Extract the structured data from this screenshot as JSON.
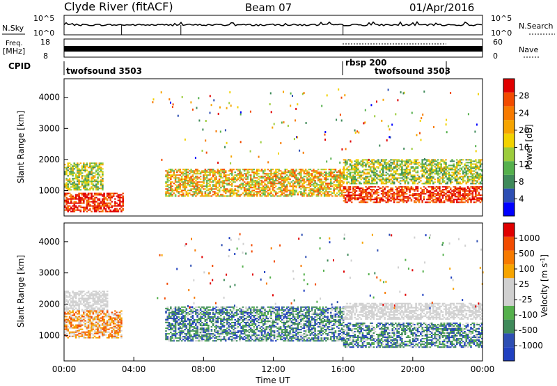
{
  "header": {
    "station": "Clyde River (fitACF)",
    "beam": "Beam 07",
    "date": "01/Apr/2016"
  },
  "noise_panel": {
    "left_label": "N.Sky",
    "right_label": "N.Search",
    "left_ticks": [
      "10^5",
      "10^0"
    ],
    "right_ticks": [
      "10^5",
      "10^0"
    ]
  },
  "freq_panel": {
    "label_line1": "Freq.",
    "label_line2": "[MHz]",
    "left_ticks": [
      "18",
      "8"
    ],
    "right_ticks": [
      "60",
      "0"
    ],
    "right_label": "Nave"
  },
  "cpid": {
    "label": "CPID",
    "segments": [
      {
        "name": "twofsound 3503",
        "start_hour": 0,
        "end_hour": 16
      },
      {
        "name": "rbsp 200",
        "start_hour": 16,
        "end_hour": 22
      },
      {
        "name": "twofsound 3503",
        "start_hour": 16.8,
        "end_hour": 22
      }
    ]
  },
  "time_axis": {
    "label": "Time UT",
    "ticks": [
      "00:00",
      "04:00",
      "08:00",
      "12:00",
      "16:00",
      "20:00",
      "00:00"
    ]
  },
  "colors": {
    "power": [
      "#0000ff",
      "#2d4eb3",
      "#3f8a5a",
      "#55b04c",
      "#9ccc3c",
      "#f2d200",
      "#f6a400",
      "#f77a00",
      "#f24b00",
      "#e00000"
    ],
    "velocity": [
      "#e00000",
      "#f24b00",
      "#f77a00",
      "#f6a400",
      "#d0d0d0",
      "#d0d0d0",
      "#55b04c",
      "#3f8a5a",
      "#2d4eb3",
      "#2040c0"
    ]
  },
  "chart_data": [
    {
      "type": "heatmap",
      "title": "",
      "xlabel": "Time UT",
      "ylabel": "Slant Range [km]",
      "xlim_hours": [
        0,
        24
      ],
      "ylim": [
        180,
        4600
      ],
      "y_ticks": [
        1000,
        2000,
        3000,
        4000
      ],
      "colorbar": {
        "label": "Power [dB]",
        "ticks": [
          "4",
          "8",
          "12",
          "16",
          "20",
          "24",
          "28"
        ],
        "range": [
          0,
          30
        ]
      },
      "features": [
        {
          "t0": 0.0,
          "t1": 2.2,
          "r0": 1000,
          "r1": 1900,
          "level": "mid"
        },
        {
          "t0": 0.0,
          "t1": 3.4,
          "r0": 300,
          "r1": 900,
          "level": "high"
        },
        {
          "t0": 5.8,
          "t1": 16.0,
          "r0": 800,
          "r1": 1700,
          "level": "mid-high"
        },
        {
          "t0": 16.0,
          "t1": 24.0,
          "r0": 600,
          "r1": 1100,
          "level": "high"
        },
        {
          "t0": 16.0,
          "t1": 24.0,
          "r0": 1200,
          "r1": 2000,
          "level": "mid"
        }
      ]
    },
    {
      "type": "heatmap",
      "title": "",
      "xlabel": "Time UT",
      "ylabel": "Slant Range [km]",
      "xlim_hours": [
        0,
        24
      ],
      "ylim": [
        180,
        4600
      ],
      "y_ticks": [
        1000,
        2000,
        3000,
        4000
      ],
      "colorbar": {
        "label": "Velocity [m s-1]",
        "ticks": [
          "1000",
          "500",
          "100",
          "25",
          "-25",
          "-100",
          "-500",
          "-1000"
        ],
        "range": [
          -1000,
          1000
        ]
      },
      "features": [
        {
          "t0": 0.0,
          "t1": 2.5,
          "r0": 1800,
          "r1": 2400,
          "level": "ground"
        },
        {
          "t0": 0.0,
          "t1": 3.3,
          "r0": 900,
          "r1": 1800,
          "level": "positive"
        },
        {
          "t0": 5.8,
          "t1": 16.0,
          "r0": 800,
          "r1": 1900,
          "level": "negative"
        },
        {
          "t0": 16.0,
          "t1": 24.0,
          "r0": 1500,
          "r1": 2000,
          "level": "ground"
        },
        {
          "t0": 16.0,
          "t1": 24.0,
          "r0": 600,
          "r1": 1400,
          "level": "negative"
        }
      ]
    }
  ]
}
